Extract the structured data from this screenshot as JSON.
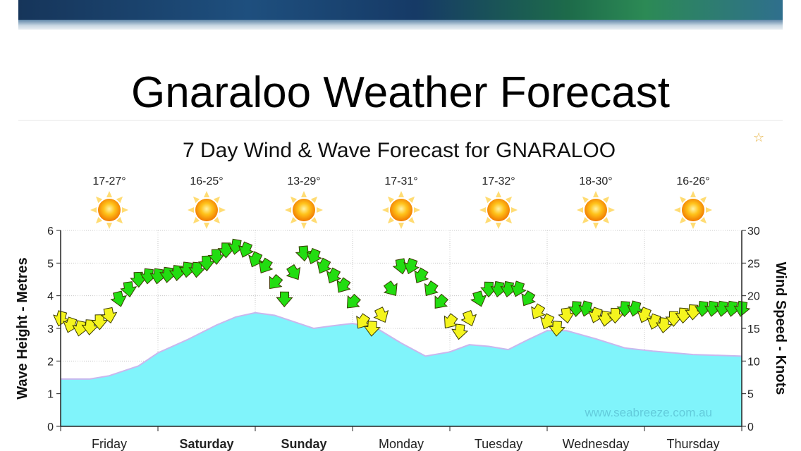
{
  "page": {
    "title": "Gnaraloo Weather Forecast",
    "bookmark_icon": "star-outline-icon"
  },
  "chart_data": {
    "type": "area",
    "title": "7 Day Wind & Wave Forecast for GNARALOO",
    "ylabel": "Wave Height - Metres",
    "y2label": "Wind Speed - Knots",
    "ylim": [
      0,
      6
    ],
    "y2lim": [
      0,
      30
    ],
    "yticks": [
      0,
      1,
      2,
      3,
      4,
      5,
      6
    ],
    "y2ticks": [
      0,
      5,
      10,
      15,
      20,
      25,
      30
    ],
    "days": [
      {
        "label": "Friday",
        "temp": "17-27°",
        "bold": false
      },
      {
        "label": "Saturday",
        "temp": "16-25°",
        "bold": true
      },
      {
        "label": "Sunday",
        "temp": "13-29°",
        "bold": true
      },
      {
        "label": "Monday",
        "temp": "17-31°",
        "bold": false
      },
      {
        "label": "Tuesday",
        "temp": "17-32°",
        "bold": false
      },
      {
        "label": "Wednesday",
        "temp": "18-30°",
        "bold": false
      },
      {
        "label": "Thursday",
        "temp": "16-26°",
        "bold": false
      }
    ],
    "weather_icon": "sun-icon",
    "watermark": "www.seabreeze.com.au",
    "grid": true,
    "colors": {
      "wave_fill": "#80f4fb",
      "wave_line": "#c9b7ee",
      "wind_light": "#f5f51e",
      "wind_strong": "#22dd11",
      "arrow_outline": "#3b3b00"
    },
    "wave_height_m": {
      "x_day": [
        0,
        0.3,
        0.5,
        0.8,
        1.0,
        1.3,
        1.6,
        1.8,
        2.0,
        2.2,
        2.4,
        2.6,
        2.8,
        3.0,
        3.25,
        3.5,
        3.75,
        4.0,
        4.2,
        4.4,
        4.6,
        4.8,
        5.0,
        5.2,
        5.5,
        5.8,
        6.1,
        6.5,
        7.0
      ],
      "y": [
        1.45,
        1.45,
        1.55,
        1.85,
        2.25,
        2.65,
        3.1,
        3.35,
        3.48,
        3.4,
        3.2,
        3.0,
        3.08,
        3.15,
        3.0,
        2.55,
        2.15,
        2.28,
        2.5,
        2.45,
        2.35,
        2.65,
        2.93,
        2.93,
        2.68,
        2.4,
        2.3,
        2.2,
        2.15
      ]
    },
    "wind_knots": {
      "x_day": [
        0.0,
        0.1,
        0.2,
        0.3,
        0.4,
        0.5,
        0.6,
        0.7,
        0.8,
        0.9,
        1.0,
        1.1,
        1.2,
        1.3,
        1.4,
        1.5,
        1.6,
        1.7,
        1.8,
        1.9,
        2.0,
        2.1,
        2.2,
        2.3,
        2.4,
        2.5,
        2.6,
        2.7,
        2.8,
        2.9,
        3.0,
        3.1,
        3.2,
        3.3,
        3.4,
        3.5,
        3.6,
        3.7,
        3.8,
        3.9,
        4.0,
        4.1,
        4.2,
        4.3,
        4.4,
        4.5,
        4.6,
        4.7,
        4.8,
        4.9,
        5.0,
        5.1,
        5.2,
        5.3,
        5.4,
        5.5,
        5.6,
        5.7,
        5.8,
        5.9,
        6.0,
        6.1,
        6.2,
        6.3,
        6.4,
        6.5,
        6.6,
        6.7,
        6.8,
        6.9,
        7.0
      ],
      "y": [
        16.5,
        15.5,
        15.0,
        15.2,
        16.0,
        17.0,
        19.5,
        21.0,
        22.5,
        23.0,
        23.0,
        23.2,
        23.5,
        24.0,
        24.0,
        25.0,
        26.0,
        27.0,
        27.5,
        27.0,
        25.5,
        24.5,
        22.0,
        19.5,
        23.5,
        26.5,
        26.0,
        24.5,
        23.0,
        21.5,
        19.0,
        16.0,
        15.0,
        17.0,
        21.0,
        24.5,
        24.5,
        23.0,
        21.0,
        19.0,
        16.0,
        14.5,
        16.5,
        19.5,
        21.0,
        21.0,
        21.0,
        21.0,
        19.5,
        17.5,
        16.0,
        15.0,
        17.0,
        18.0,
        18.0,
        17.0,
        16.5,
        17.0,
        18.0,
        18.0,
        17.0,
        16.0,
        15.5,
        16.5,
        17.0,
        17.5,
        18.0,
        18.0,
        18.0,
        18.0,
        18.0
      ]
    }
  }
}
